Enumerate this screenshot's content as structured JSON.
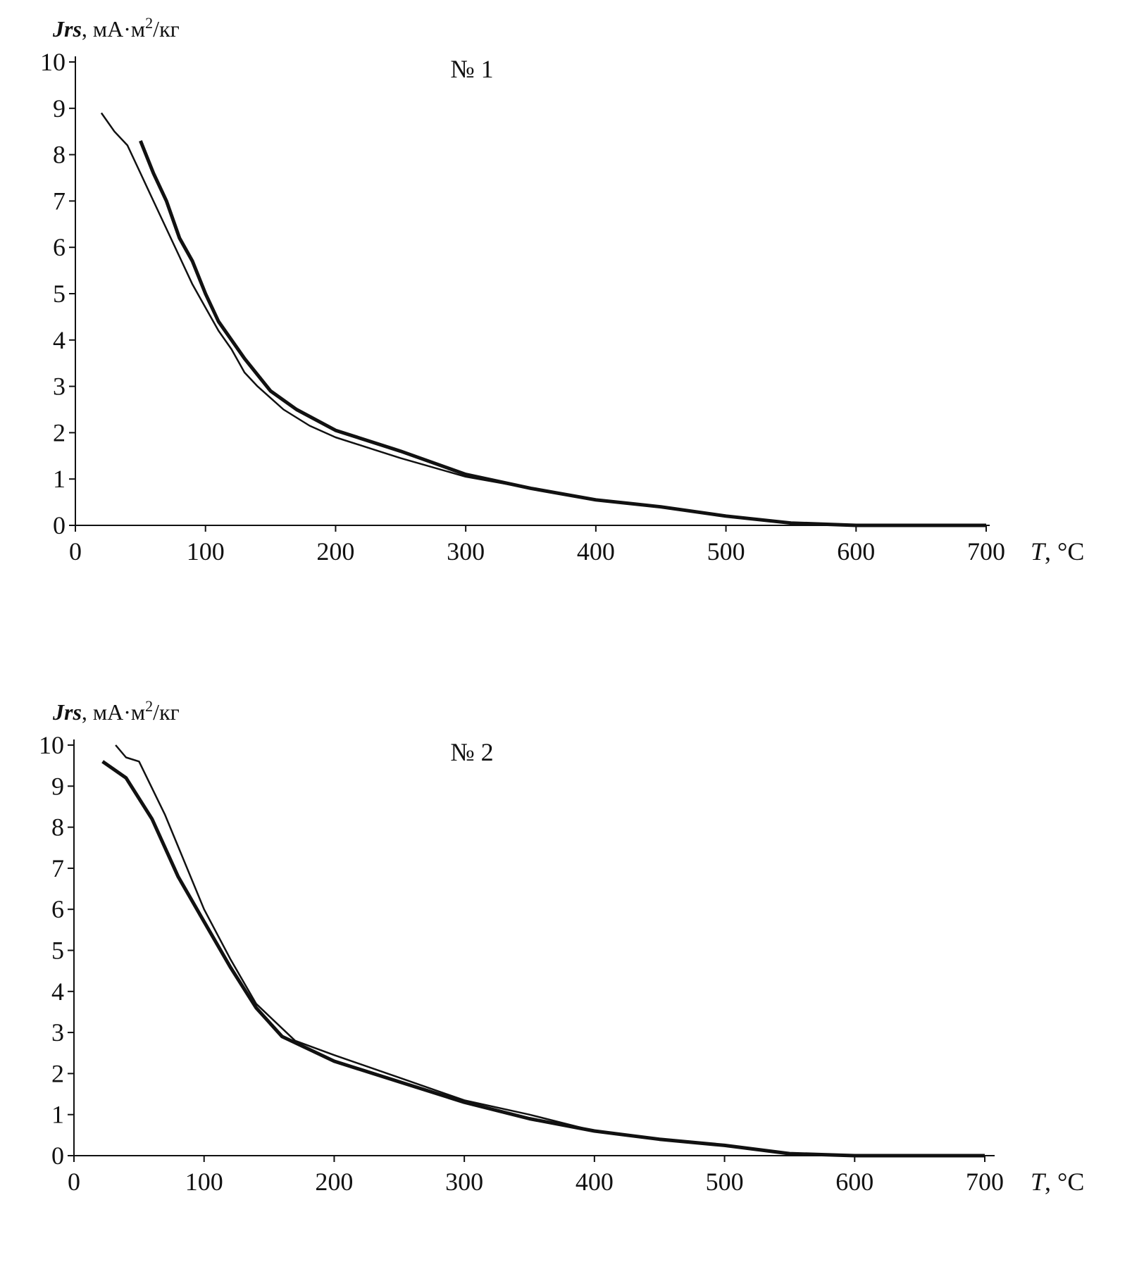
{
  "chart_data": [
    {
      "type": "line",
      "title": "№ 1",
      "ylabel_symbol": "Jrs",
      "ylabel_units": ", мА·м",
      "ylabel_sup": "2",
      "ylabel_tail": "/кг",
      "xlabel_symbol": "T",
      "xlabel_units": ", °C",
      "xlim": [
        0,
        700
      ],
      "ylim": [
        0,
        10
      ],
      "xticks": [
        "0",
        "100",
        "200",
        "300",
        "400",
        "500",
        "600",
        "700"
      ],
      "yticks": [
        "0",
        "1",
        "2",
        "3",
        "4",
        "5",
        "6",
        "7",
        "8",
        "9",
        "10"
      ],
      "grid": false,
      "series": [
        {
          "name": "thin",
          "x": [
            20,
            30,
            40,
            50,
            60,
            70,
            80,
            90,
            100,
            110,
            120,
            130,
            140,
            160,
            180,
            200,
            250,
            300,
            350,
            400,
            450,
            500,
            550,
            600,
            700
          ],
          "y": [
            8.9,
            8.5,
            8.2,
            7.6,
            7.0,
            6.4,
            5.8,
            5.2,
            4.7,
            4.2,
            3.8,
            3.3,
            3.0,
            2.5,
            2.15,
            1.9,
            1.45,
            1.05,
            0.8,
            0.55,
            0.4,
            0.2,
            0.05,
            0,
            0
          ]
        },
        {
          "name": "thick",
          "x": [
            50,
            60,
            70,
            80,
            90,
            100,
            110,
            120,
            130,
            150,
            170,
            200,
            250,
            300,
            350,
            400,
            450,
            500,
            550,
            600,
            700
          ],
          "y": [
            8.3,
            7.6,
            7.0,
            6.2,
            5.7,
            5.0,
            4.4,
            4.0,
            3.6,
            2.9,
            2.5,
            2.05,
            1.6,
            1.1,
            0.8,
            0.55,
            0.4,
            0.2,
            0.05,
            0,
            0
          ]
        }
      ]
    },
    {
      "type": "line",
      "title": "№ 2",
      "ylabel_symbol": "Jrs",
      "ylabel_units": ", мА·м",
      "ylabel_sup": "2",
      "ylabel_tail": "/кг",
      "xlabel_symbol": "T",
      "xlabel_units": ", °C",
      "xlim": [
        0,
        700
      ],
      "ylim": [
        0,
        10
      ],
      "xticks": [
        "0",
        "100",
        "200",
        "300",
        "400",
        "500",
        "600",
        "700"
      ],
      "yticks": [
        "0",
        "1",
        "2",
        "3",
        "4",
        "5",
        "6",
        "7",
        "8",
        "9",
        "10"
      ],
      "grid": false,
      "series": [
        {
          "name": "thick",
          "x": [
            22,
            40,
            60,
            80,
            100,
            120,
            140,
            160,
            180,
            200,
            250,
            300,
            350,
            400,
            450,
            500,
            550,
            600,
            700
          ],
          "y": [
            9.6,
            9.2,
            8.2,
            6.8,
            5.7,
            4.6,
            3.6,
            2.9,
            2.6,
            2.3,
            1.8,
            1.3,
            0.9,
            0.6,
            0.4,
            0.25,
            0.05,
            0,
            0
          ]
        },
        {
          "name": "thin",
          "x": [
            32,
            40,
            50,
            70,
            100,
            120,
            140,
            170,
            200,
            250,
            300,
            350,
            400,
            450,
            500,
            550,
            600,
            700
          ],
          "y": [
            10.0,
            9.7,
            9.6,
            8.3,
            6.0,
            4.8,
            3.7,
            2.8,
            2.45,
            1.9,
            1.35,
            1.0,
            0.6,
            0.4,
            0.25,
            0.05,
            0,
            0
          ]
        }
      ]
    }
  ]
}
